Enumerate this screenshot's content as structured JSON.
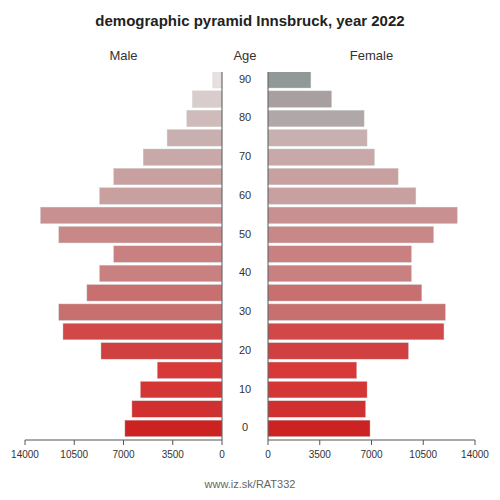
{
  "chart_data": {
    "type": "pyramid",
    "orientation": "horizontal",
    "title": "demographic pyramid Innsbruck, year 2022",
    "ylabel": "Age",
    "annotations": [
      "www.iz.sk/RAT332"
    ],
    "categories": [
      "0",
      null,
      "10",
      null,
      "20",
      null,
      "30",
      null,
      "40",
      null,
      "50",
      null,
      "60",
      null,
      "70",
      null,
      "80",
      null,
      "90"
    ],
    "series": [
      {
        "name": "Male",
        "values": [
          6900,
          6400,
          5800,
          4600,
          8600,
          11300,
          11600,
          9600,
          8700,
          7700,
          11600,
          12900,
          8700,
          7700,
          5600,
          3900,
          2500,
          2100,
          650
        ],
        "colors": [
          "#cc2222",
          "#d03030",
          "#d43535",
          "#d83838",
          "#d04040",
          "#d04848",
          "#c87070",
          "#c87070",
          "#c88080",
          "#c88080",
          "#c88888",
          "#c89090",
          "#c8a0a0",
          "#c8a0a0",
          "#c8a8a8",
          "#c8b0b0",
          "#d0bbbb",
          "#d8cccc",
          "#e8e0e0"
        ]
      },
      {
        "name": "Female",
        "values": [
          6900,
          6600,
          6700,
          6000,
          9500,
          11900,
          12000,
          10400,
          9700,
          9700,
          11200,
          12800,
          10000,
          8800,
          7200,
          6700,
          6500,
          4300,
          2900
        ],
        "colors": [
          "#cc2222",
          "#d03030",
          "#d43535",
          "#d83838",
          "#d04040",
          "#d04848",
          "#c87070",
          "#c87070",
          "#c88080",
          "#c88080",
          "#c88888",
          "#c89090",
          "#c8a0a0",
          "#c8a0a0",
          "#c8a8a8",
          "#c8b0b0",
          "#b0a8a8",
          "#a8a0a0",
          "#909898"
        ]
      }
    ],
    "xlim": [
      0,
      14000
    ],
    "xticks": [
      0,
      3500,
      7000,
      10500,
      14000
    ],
    "grid": false
  }
}
